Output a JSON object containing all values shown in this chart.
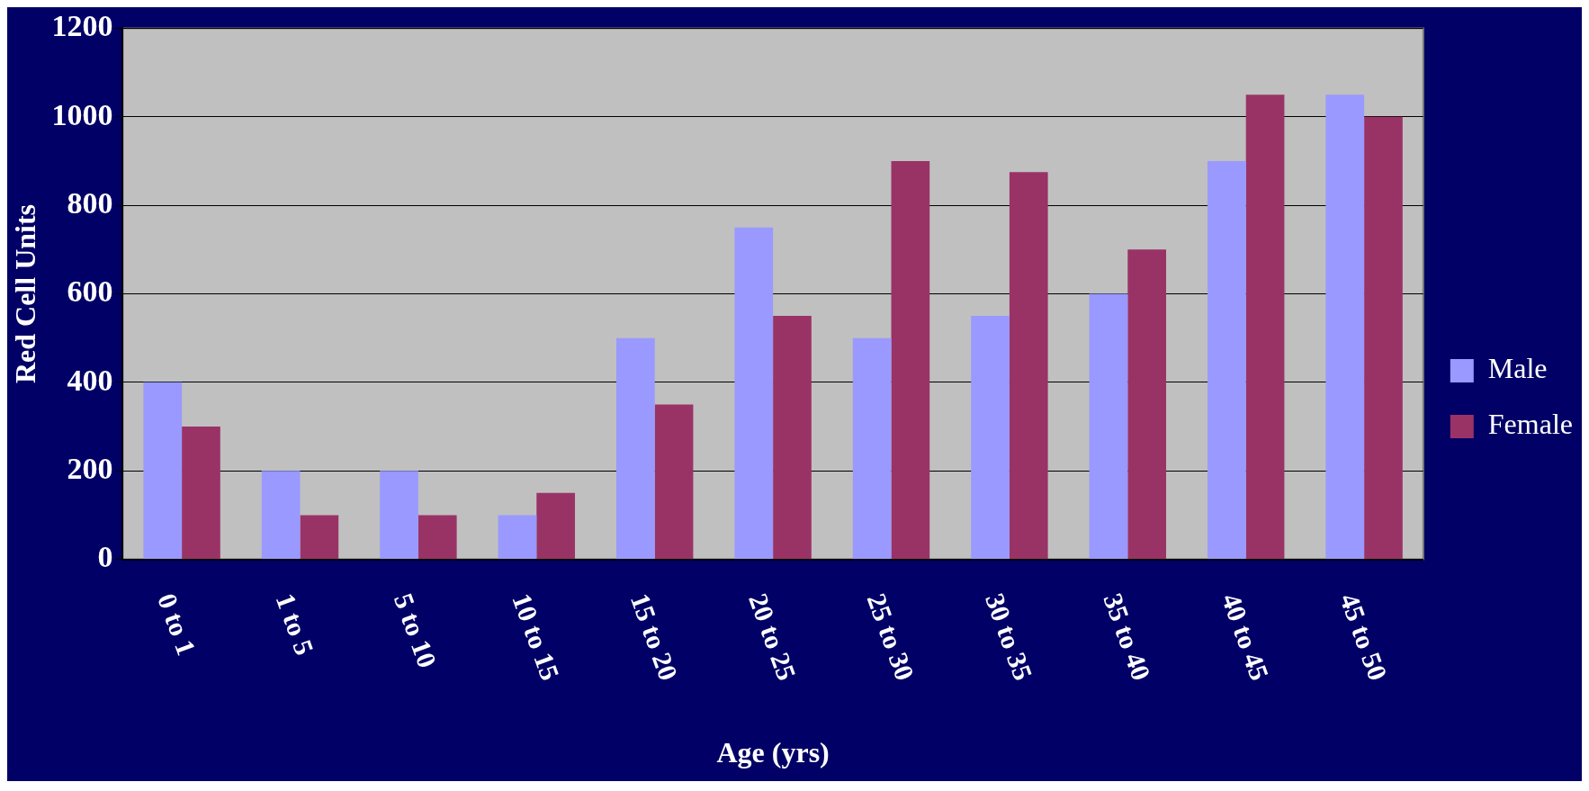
{
  "chart_data": {
    "type": "bar",
    "xlabel": "Age (yrs)",
    "ylabel": "Red Cell Units",
    "categories": [
      "0 to 1",
      "1 to 5",
      "5 to 10",
      "10 to 15",
      "15 to 20",
      "20 to 25",
      "25 to 30",
      "30 to 35",
      "35 to 40",
      "40 to 45",
      "45 to 50"
    ],
    "series": [
      {
        "name": "Male",
        "color": "#9999ff",
        "values": [
          400,
          200,
          200,
          100,
          500,
          750,
          500,
          550,
          600,
          900,
          1050
        ]
      },
      {
        "name": "Female",
        "color": "#993366",
        "values": [
          300,
          100,
          100,
          150,
          350,
          550,
          900,
          875,
          700,
          1050,
          1000
        ]
      }
    ],
    "ylim": [
      0,
      1200
    ],
    "yticks": [
      0,
      200,
      400,
      600,
      800,
      1000,
      1200
    ],
    "grid": "y",
    "legend": "right"
  }
}
